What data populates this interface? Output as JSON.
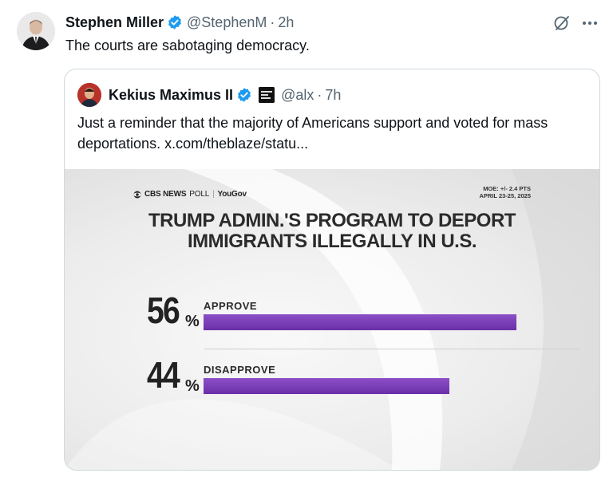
{
  "tweet": {
    "author_name": "Stephen Miller",
    "author_handle": "@StephenM",
    "time": "2h",
    "text": "The courts are sabotaging democracy."
  },
  "quote": {
    "author_name": "Kekius Maximus II",
    "author_handle": "@alx",
    "time": "7h",
    "text": "Just a reminder that the majority of Americans support and voted for mass deportations.  x.com/theblaze/statu..."
  },
  "poll": {
    "brand": "CBS NEWS",
    "brand_poll": "POLL",
    "brand_partner": "YouGov",
    "moe_line1": "MOE: +/- 2.4 PTS",
    "moe_line2": "APRIL 23-25, 2025",
    "title_line1": "TRUMP ADMIN.'S PROGRAM TO DEPORT",
    "title_line2": "IMMIGRANTS ILLEGALLY IN U.S.",
    "options": [
      {
        "label": "APPROVE",
        "value": "56",
        "pct_sign": "%",
        "fraction": 0.56
      },
      {
        "label": "DISAPPROVE",
        "value": "44",
        "pct_sign": "%",
        "fraction": 0.44
      }
    ],
    "bar_color": "#7a3db8"
  },
  "icons": {
    "verified": "verified-badge-icon",
    "grok": "grok-icon",
    "more": "more-icon"
  }
}
